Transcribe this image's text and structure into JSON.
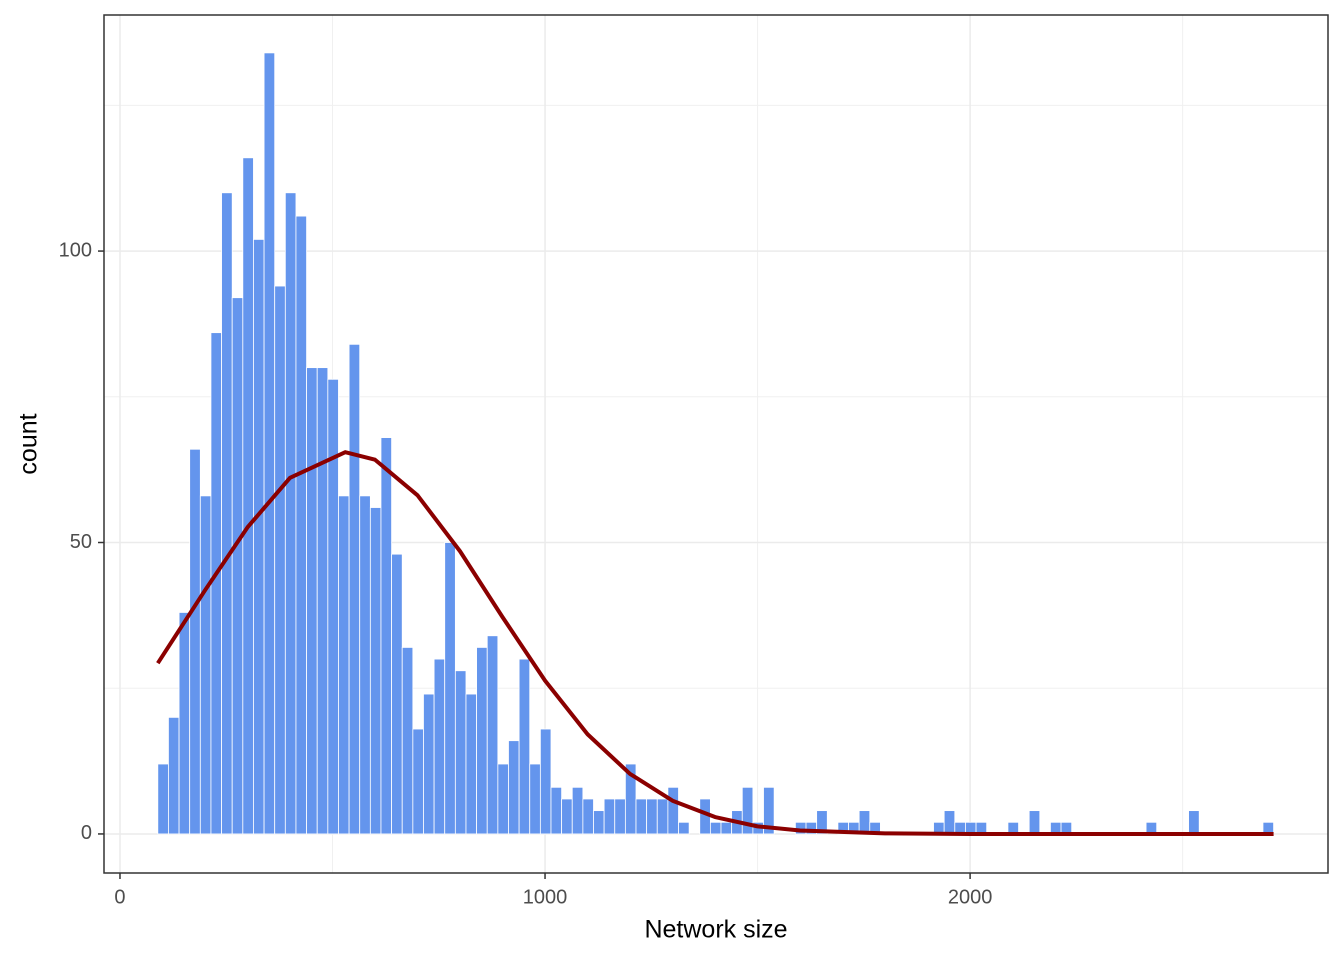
{
  "chart_data": {
    "type": "histogram",
    "xlabel": "Network size",
    "ylabel": "count",
    "bins": [
      89,
      114,
      139,
      164,
      189,
      214,
      239,
      264,
      289,
      314,
      339,
      364,
      389,
      414,
      439,
      464,
      489,
      514,
      539,
      564,
      589,
      614,
      639,
      664,
      689,
      714,
      739,
      764,
      789,
      814,
      839,
      864,
      889,
      914,
      939,
      964,
      989,
      1014,
      1039,
      1064,
      1089,
      1114,
      1139,
      1164,
      1189,
      1214,
      1239,
      1264,
      1289,
      1314,
      1339,
      1364,
      1389,
      1414,
      1439,
      1464,
      1489,
      1514,
      1539,
      1564,
      1589,
      1614,
      1639,
      1664,
      1689,
      1714,
      1739,
      1764,
      1789,
      1814,
      1839,
      1864,
      1889,
      1914,
      1939,
      1964,
      1989,
      2014,
      2039,
      2064,
      2089,
      2114,
      2139,
      2164,
      2189,
      2214,
      2239,
      2264,
      2289,
      2314,
      2339,
      2364,
      2389,
      2414,
      2439,
      2464,
      2489,
      2514,
      2539,
      2564,
      2589,
      2614,
      2639,
      2664,
      2689,
      2714
    ],
    "counts": [
      12,
      20,
      38,
      66,
      58,
      86,
      110,
      92,
      116,
      102,
      134,
      94,
      110,
      106,
      80,
      80,
      78,
      58,
      84,
      58,
      56,
      68,
      48,
      32,
      18,
      24,
      30,
      50,
      28,
      24,
      32,
      34,
      12,
      16,
      30,
      12,
      18,
      8,
      6,
      8,
      6,
      4,
      6,
      6,
      12,
      6,
      6,
      6,
      8,
      2,
      0,
      6,
      2,
      2,
      4,
      8,
      2,
      8,
      0,
      0,
      2,
      2,
      4,
      0,
      2,
      2,
      4,
      2,
      0,
      0,
      0,
      0,
      0,
      2,
      4,
      2,
      2,
      2,
      0,
      0,
      2,
      0,
      4,
      0,
      2,
      2,
      0,
      0,
      0,
      0,
      0,
      0,
      0,
      2,
      0,
      0,
      0,
      4,
      0,
      0,
      0,
      0,
      0,
      0,
      2
    ],
    "color": "#6495ed",
    "density": {
      "type": "line",
      "color": "#8b0000",
      "x": [
        89,
        200,
        300,
        400,
        530,
        600,
        700,
        800,
        900,
        1000,
        1100,
        1200,
        1300,
        1400,
        1500,
        1600,
        1800,
        2000,
        2400,
        2714
      ],
      "values": [
        29.3,
        41.8,
        52.6,
        61.1,
        65.5,
        64.2,
        58.1,
        48.5,
        37.2,
        26.3,
        17.1,
        10.3,
        5.7,
        2.9,
        1.3,
        0.6,
        0.1,
        0,
        0,
        0
      ]
    },
    "xlim": [
      -37.6,
      2842
    ],
    "ylim": [
      -6.7,
      140.5
    ],
    "xticks": [
      0,
      1000,
      2000
    ],
    "yticks": [
      0,
      50,
      100
    ],
    "xminor": [
      500,
      1500,
      2500
    ],
    "yminor": [
      25,
      75,
      125
    ],
    "grid": true
  }
}
